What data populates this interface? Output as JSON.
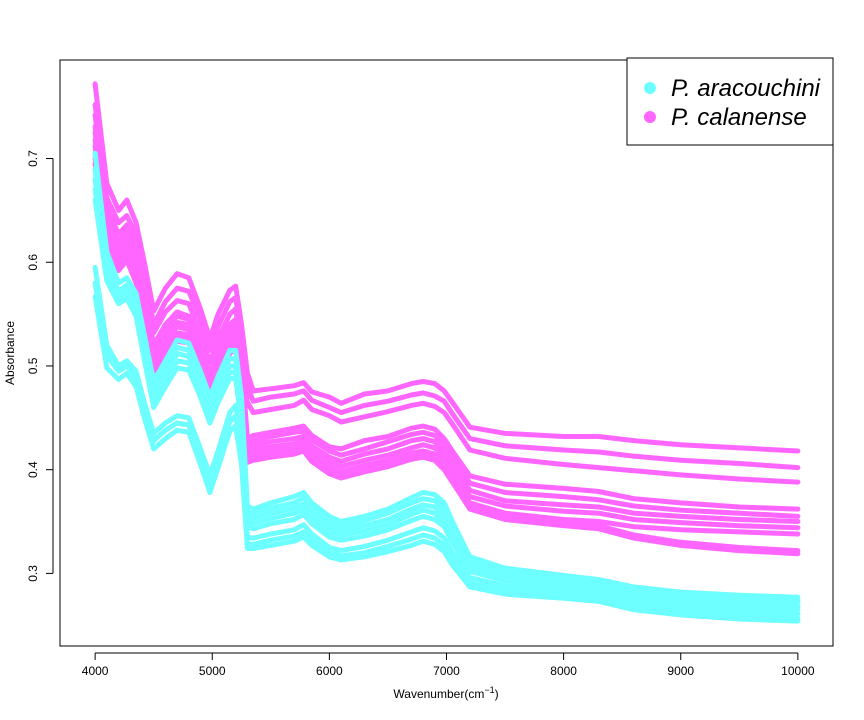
{
  "chart_data": {
    "type": "line",
    "title": "",
    "xlabel": "Wavenumber(cm",
    "xlabel_sup": "−1",
    "xlabel_close": ")",
    "ylabel": "Absorbance",
    "xlim": [
      3700,
      10300
    ],
    "ylim": [
      0.23,
      0.795
    ],
    "x_ticks": [
      4000,
      5000,
      6000,
      7000,
      8000,
      9000,
      10000
    ],
    "y_ticks": [
      0.3,
      0.4,
      0.5,
      0.6,
      0.7
    ],
    "grid": false,
    "legend_position": "top-right",
    "legend": [
      {
        "label": "P. aracouchini",
        "color": "#6dffff"
      },
      {
        "label": "P. calanense",
        "color": "#ff66ff"
      }
    ],
    "x": [
      4000,
      4100,
      4200,
      4270,
      4350,
      4420,
      4500,
      4600,
      4700,
      4800,
      4900,
      4980,
      5050,
      5150,
      5200,
      5250,
      5300,
      5350,
      5500,
      5700,
      5780,
      5850,
      6000,
      6100,
      6300,
      6500,
      6700,
      6800,
      6900,
      6980,
      7050,
      7200,
      7500,
      8000,
      8300,
      8600,
      9000,
      9500,
      10000
    ],
    "series": [
      {
        "group": "P. calanense",
        "color": "#ff66ff",
        "values": [
          0.772,
          0.676,
          0.65,
          0.66,
          0.638,
          0.6,
          0.553,
          0.575,
          0.589,
          0.585,
          0.555,
          0.526,
          0.55,
          0.573,
          0.577,
          0.54,
          0.493,
          0.476,
          0.478,
          0.481,
          0.484,
          0.475,
          0.47,
          0.464,
          0.473,
          0.476,
          0.483,
          0.485,
          0.483,
          0.476,
          0.465,
          0.441,
          0.435,
          0.432,
          0.432,
          0.428,
          0.424,
          0.421,
          0.418
        ]
      },
      {
        "group": "P. calanense",
        "color": "#ff66ff",
        "values": [
          0.752,
          0.662,
          0.638,
          0.645,
          0.626,
          0.59,
          0.54,
          0.562,
          0.575,
          0.572,
          0.545,
          0.515,
          0.538,
          0.562,
          0.566,
          0.528,
          0.48,
          0.466,
          0.47,
          0.473,
          0.476,
          0.467,
          0.46,
          0.455,
          0.462,
          0.466,
          0.472,
          0.474,
          0.471,
          0.466,
          0.454,
          0.43,
          0.423,
          0.419,
          0.417,
          0.413,
          0.409,
          0.406,
          0.402
        ]
      },
      {
        "group": "P. calanense",
        "color": "#ff66ff",
        "values": [
          0.742,
          0.653,
          0.627,
          0.636,
          0.615,
          0.58,
          0.532,
          0.552,
          0.563,
          0.56,
          0.532,
          0.503,
          0.526,
          0.55,
          0.555,
          0.515,
          0.465,
          0.455,
          0.458,
          0.462,
          0.467,
          0.458,
          0.452,
          0.446,
          0.451,
          0.456,
          0.462,
          0.464,
          0.461,
          0.455,
          0.444,
          0.419,
          0.411,
          0.405,
          0.402,
          0.399,
          0.395,
          0.391,
          0.388
        ]
      },
      {
        "group": "P. calanense",
        "color": "#ff66ff",
        "values": [
          0.731,
          0.642,
          0.62,
          0.629,
          0.608,
          0.57,
          0.52,
          0.54,
          0.552,
          0.548,
          0.52,
          0.492,
          0.515,
          0.54,
          0.545,
          0.505,
          0.43,
          0.433,
          0.436,
          0.44,
          0.442,
          0.433,
          0.422,
          0.42,
          0.428,
          0.432,
          0.44,
          0.442,
          0.439,
          0.43,
          0.418,
          0.394,
          0.386,
          0.382,
          0.379,
          0.372,
          0.368,
          0.364,
          0.362
        ]
      },
      {
        "group": "P. calanense",
        "color": "#ff66ff",
        "values": [
          0.725,
          0.636,
          0.614,
          0.624,
          0.602,
          0.566,
          0.514,
          0.536,
          0.548,
          0.545,
          0.516,
          0.488,
          0.511,
          0.535,
          0.54,
          0.5,
          0.425,
          0.428,
          0.432,
          0.436,
          0.437,
          0.429,
          0.418,
          0.414,
          0.42,
          0.427,
          0.434,
          0.436,
          0.433,
          0.425,
          0.412,
          0.387,
          0.378,
          0.374,
          0.371,
          0.365,
          0.361,
          0.358,
          0.355
        ]
      },
      {
        "group": "P. calanense",
        "color": "#ff66ff",
        "values": [
          0.718,
          0.63,
          0.61,
          0.62,
          0.598,
          0.56,
          0.51,
          0.53,
          0.542,
          0.54,
          0.51,
          0.482,
          0.505,
          0.53,
          0.535,
          0.495,
          0.42,
          0.424,
          0.427,
          0.43,
          0.432,
          0.423,
          0.412,
          0.408,
          0.415,
          0.42,
          0.428,
          0.43,
          0.427,
          0.418,
          0.405,
          0.38,
          0.37,
          0.366,
          0.364,
          0.358,
          0.355,
          0.352,
          0.35
        ]
      },
      {
        "group": "P. calanense",
        "color": "#ff66ff",
        "values": [
          0.712,
          0.626,
          0.606,
          0.616,
          0.594,
          0.556,
          0.507,
          0.526,
          0.538,
          0.535,
          0.505,
          0.478,
          0.5,
          0.525,
          0.53,
          0.49,
          0.416,
          0.42,
          0.422,
          0.425,
          0.428,
          0.418,
          0.407,
          0.403,
          0.409,
          0.414,
          0.421,
          0.424,
          0.421,
          0.412,
          0.399,
          0.374,
          0.365,
          0.36,
          0.358,
          0.352,
          0.349,
          0.346,
          0.344
        ]
      },
      {
        "group": "P. calanense",
        "color": "#ff66ff",
        "values": [
          0.705,
          0.62,
          0.6,
          0.61,
          0.588,
          0.55,
          0.502,
          0.52,
          0.532,
          0.53,
          0.5,
          0.472,
          0.495,
          0.52,
          0.525,
          0.485,
          0.412,
          0.415,
          0.418,
          0.42,
          0.424,
          0.414,
          0.402,
          0.398,
          0.404,
          0.409,
          0.416,
          0.418,
          0.415,
          0.406,
          0.394,
          0.368,
          0.358,
          0.352,
          0.35,
          0.345,
          0.342,
          0.34,
          0.338
        ]
      },
      {
        "group": "P. calanense",
        "color": "#ff66ff",
        "values": [
          0.7,
          0.615,
          0.596,
          0.606,
          0.584,
          0.546,
          0.498,
          0.516,
          0.528,
          0.526,
          0.496,
          0.468,
          0.49,
          0.515,
          0.52,
          0.48,
          0.41,
          0.412,
          0.415,
          0.418,
          0.421,
          0.411,
          0.399,
          0.395,
          0.401,
          0.406,
          0.413,
          0.415,
          0.412,
          0.403,
          0.391,
          0.365,
          0.355,
          0.349,
          0.346,
          0.337,
          0.33,
          0.325,
          0.322
        ]
      },
      {
        "group": "P. calanense",
        "color": "#ff66ff",
        "values": [
          0.695,
          0.612,
          0.592,
          0.602,
          0.58,
          0.542,
          0.495,
          0.512,
          0.524,
          0.522,
          0.492,
          0.465,
          0.487,
          0.512,
          0.517,
          0.477,
          0.407,
          0.409,
          0.412,
          0.415,
          0.418,
          0.408,
          0.396,
          0.392,
          0.398,
          0.403,
          0.41,
          0.412,
          0.409,
          0.4,
          0.388,
          0.362,
          0.352,
          0.346,
          0.343,
          0.334,
          0.327,
          0.322,
          0.319
        ]
      },
      {
        "group": "P. aracouchini",
        "color": "#6dffff",
        "values": [
          0.705,
          0.61,
          0.58,
          0.585,
          0.57,
          0.53,
          0.485,
          0.505,
          0.525,
          0.522,
          0.495,
          0.47,
          0.49,
          0.515,
          0.515,
          0.47,
          0.365,
          0.362,
          0.368,
          0.374,
          0.378,
          0.368,
          0.355,
          0.35,
          0.355,
          0.362,
          0.373,
          0.378,
          0.376,
          0.368,
          0.35,
          0.316,
          0.305,
          0.298,
          0.294,
          0.287,
          0.282,
          0.279,
          0.277
        ]
      },
      {
        "group": "P. aracouchini",
        "color": "#6dffff",
        "values": [
          0.69,
          0.6,
          0.572,
          0.578,
          0.562,
          0.522,
          0.478,
          0.498,
          0.518,
          0.515,
          0.488,
          0.463,
          0.483,
          0.507,
          0.507,
          0.462,
          0.36,
          0.358,
          0.363,
          0.368,
          0.373,
          0.364,
          0.35,
          0.345,
          0.351,
          0.358,
          0.368,
          0.372,
          0.37,
          0.362,
          0.345,
          0.312,
          0.301,
          0.295,
          0.291,
          0.284,
          0.279,
          0.276,
          0.274
        ]
      },
      {
        "group": "P. aracouchini",
        "color": "#6dffff",
        "values": [
          0.68,
          0.594,
          0.568,
          0.574,
          0.558,
          0.517,
          0.472,
          0.492,
          0.512,
          0.509,
          0.482,
          0.457,
          0.477,
          0.5,
          0.5,
          0.456,
          0.355,
          0.353,
          0.358,
          0.363,
          0.367,
          0.358,
          0.345,
          0.341,
          0.346,
          0.352,
          0.362,
          0.366,
          0.364,
          0.356,
          0.34,
          0.308,
          0.298,
          0.292,
          0.288,
          0.281,
          0.277,
          0.274,
          0.272
        ]
      },
      {
        "group": "P. aracouchini",
        "color": "#6dffff",
        "values": [
          0.67,
          0.588,
          0.565,
          0.57,
          0.553,
          0.512,
          0.466,
          0.486,
          0.505,
          0.503,
          0.476,
          0.451,
          0.471,
          0.494,
          0.494,
          0.45,
          0.35,
          0.348,
          0.353,
          0.358,
          0.362,
          0.353,
          0.34,
          0.337,
          0.341,
          0.347,
          0.357,
          0.361,
          0.358,
          0.35,
          0.335,
          0.305,
          0.296,
          0.29,
          0.285,
          0.278,
          0.274,
          0.271,
          0.268
        ]
      },
      {
        "group": "P. aracouchini",
        "color": "#6dffff",
        "values": [
          0.66,
          0.582,
          0.56,
          0.565,
          0.548,
          0.506,
          0.46,
          0.48,
          0.498,
          0.496,
          0.47,
          0.445,
          0.465,
          0.488,
          0.488,
          0.444,
          0.345,
          0.343,
          0.348,
          0.352,
          0.357,
          0.348,
          0.335,
          0.332,
          0.336,
          0.342,
          0.351,
          0.355,
          0.352,
          0.345,
          0.33,
          0.302,
          0.293,
          0.287,
          0.282,
          0.275,
          0.27,
          0.267,
          0.265
        ]
      },
      {
        "group": "P. aracouchini",
        "color": "#6dffff",
        "values": [
          0.595,
          0.52,
          0.5,
          0.505,
          0.495,
          0.465,
          0.435,
          0.445,
          0.452,
          0.45,
          0.42,
          0.395,
          0.418,
          0.455,
          0.462,
          0.42,
          0.335,
          0.334,
          0.338,
          0.342,
          0.347,
          0.338,
          0.325,
          0.322,
          0.326,
          0.332,
          0.34,
          0.344,
          0.341,
          0.334,
          0.32,
          0.296,
          0.288,
          0.283,
          0.28,
          0.272,
          0.267,
          0.263,
          0.261
        ]
      },
      {
        "group": "P. aracouchini",
        "color": "#6dffff",
        "values": [
          0.58,
          0.51,
          0.495,
          0.5,
          0.488,
          0.458,
          0.428,
          0.438,
          0.445,
          0.443,
          0.413,
          0.388,
          0.41,
          0.446,
          0.452,
          0.412,
          0.328,
          0.328,
          0.332,
          0.336,
          0.34,
          0.332,
          0.32,
          0.317,
          0.32,
          0.326,
          0.333,
          0.337,
          0.334,
          0.327,
          0.314,
          0.291,
          0.284,
          0.279,
          0.276,
          0.268,
          0.263,
          0.259,
          0.257
        ]
      },
      {
        "group": "P. aracouchini",
        "color": "#6dffff",
        "values": [
          0.567,
          0.498,
          0.487,
          0.493,
          0.48,
          0.45,
          0.42,
          0.43,
          0.438,
          0.436,
          0.405,
          0.378,
          0.402,
          0.437,
          0.442,
          0.405,
          0.324,
          0.324,
          0.327,
          0.331,
          0.335,
          0.327,
          0.316,
          0.313,
          0.316,
          0.321,
          0.327,
          0.331,
          0.328,
          0.321,
          0.308,
          0.287,
          0.28,
          0.276,
          0.273,
          0.265,
          0.26,
          0.256,
          0.254
        ]
      }
    ]
  }
}
